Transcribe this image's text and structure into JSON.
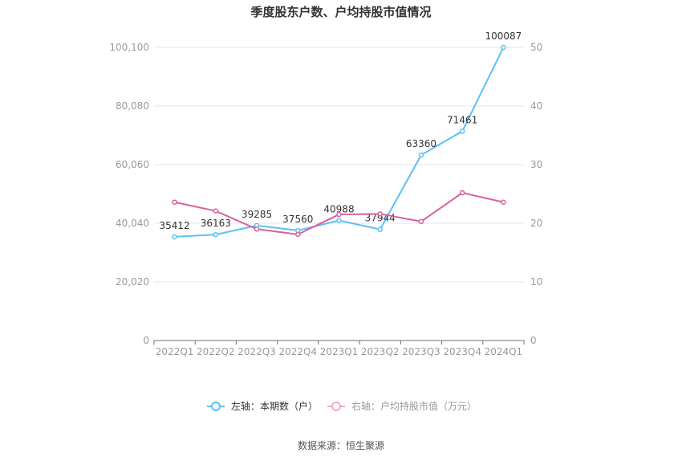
{
  "chart_data": {
    "type": "line",
    "title": "季度股东户数、户均持股市值情况",
    "categories": [
      "2022Q1",
      "2022Q2",
      "2022Q3",
      "2022Q4",
      "2023Q1",
      "2023Q2",
      "2023Q3",
      "2023Q4",
      "2024Q1"
    ],
    "series": [
      {
        "name": "左轴：本期数（户）",
        "axis": "left",
        "color": "#5bc0f8",
        "values": [
          35412,
          36163,
          39285,
          37560,
          40988,
          37944,
          63360,
          71461,
          100087
        ],
        "data_labels": true
      },
      {
        "name": "右轴：户均持股市值（万元）",
        "axis": "right",
        "color": "#d9609f",
        "legend_color": "#f0a8cf",
        "values": [
          23.6,
          22.1,
          19.0,
          18.1,
          21.5,
          21.6,
          20.3,
          25.2,
          23.6
        ],
        "data_labels": false
      }
    ],
    "left_axis": {
      "range": [
        0,
        100100
      ],
      "ticks": [
        "0",
        "20,020",
        "40,040",
        "60,060",
        "80,080",
        "100,100"
      ]
    },
    "right_axis": {
      "range": [
        0,
        50
      ],
      "ticks": [
        "0",
        "10",
        "20",
        "30",
        "40",
        "50"
      ]
    },
    "grid": true,
    "legend_placement": "bottom"
  },
  "source": "数据来源：恒生聚源"
}
